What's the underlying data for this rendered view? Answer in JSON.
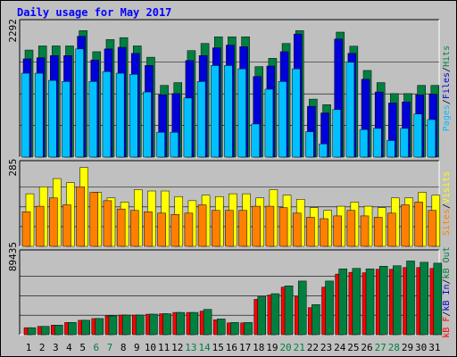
{
  "chart_data": {
    "title": "Daily usage for May 2017",
    "type": "bar",
    "categories": [
      "1",
      "2",
      "3",
      "4",
      "5",
      "6",
      "7",
      "8",
      "9",
      "10",
      "11",
      "12",
      "13",
      "14",
      "15",
      "16",
      "17",
      "18",
      "19",
      "20",
      "21",
      "22",
      "23",
      "24",
      "25",
      "26",
      "27",
      "28",
      "29",
      "30",
      "31"
    ],
    "weekend_days": [
      "6",
      "7",
      "13",
      "14",
      "20",
      "21",
      "27",
      "28"
    ],
    "colors": {
      "hits": "#008040",
      "files": "#0000d8",
      "pages": "#00c0ff",
      "visits": "#ffff00",
      "sites": "#ff8000",
      "kb_in": "#ff0000",
      "kb_out": "#008040",
      "weekday_label": "#000000",
      "weekend_label": "#008040",
      "title": "#0000ff",
      "grid": "#000000",
      "panel_bg": "#c0c0c0"
    },
    "panels": [
      {
        "key": "requests",
        "ymax_label": "2292",
        "ylim": [
          0,
          2292
        ],
        "legend": [
          {
            "text": "Pages",
            "color": "#00c0ff"
          },
          {
            "text": "Files",
            "color": "#0000d8"
          },
          {
            "text": "Hits",
            "color": "#008040"
          }
        ],
        "series": [
          {
            "name": "Hits",
            "values": [
              1940,
              2015,
              2015,
              2015,
              2292,
              1910,
              2130,
              2165,
              2015,
              1810,
              1300,
              1350,
              1930,
              2060,
              2180,
              2180,
              2180,
              1640,
              1790,
              2060,
              2292,
              1050,
              950,
              2265,
              2010,
              1570,
              1350,
              1150,
              1150,
              1300,
              1300
            ]
          },
          {
            "name": "Files",
            "values": [
              1780,
              1800,
              1840,
              1840,
              2190,
              1760,
              1960,
              1990,
              1880,
              1660,
              1130,
              1150,
              1750,
              1840,
              1980,
              2030,
              2000,
              1460,
              1650,
              1910,
              2230,
              920,
              800,
              2140,
              1880,
              1410,
              1180,
              980,
              1000,
              1130,
              1140
            ]
          },
          {
            "name": "Pages",
            "values": [
              1520,
              1520,
              1390,
              1370,
              1960,
              1370,
              1550,
              1520,
              1500,
              1180,
              450,
              450,
              1070,
              1370,
              1660,
              1660,
              1600,
              600,
              1230,
              1370,
              1600,
              460,
              240,
              860,
              1720,
              500,
              520,
              300,
              520,
              780,
              680
            ]
          }
        ]
      },
      {
        "key": "visits",
        "ymax_label": "285",
        "ylim": [
          0,
          285
        ],
        "legend": [
          {
            "text": "Sites",
            "color": "#ff8000"
          },
          {
            "text": "Visits",
            "color": "#ffff00"
          }
        ],
        "series": [
          {
            "name": "Visits",
            "values": [
              190,
              215,
              245,
              230,
              285,
              195,
              175,
              160,
              205,
              200,
              200,
              180,
              165,
              185,
              180,
              190,
              190,
              175,
              205,
              185,
              170,
              140,
              130,
              145,
              160,
              145,
              140,
              175,
              175,
              195,
              185
            ]
          },
          {
            "name": "Sites",
            "values": [
              125,
              145,
              175,
              150,
              215,
              195,
              165,
              135,
              130,
              125,
              120,
              115,
              120,
              150,
              130,
              130,
              130,
              145,
              145,
              140,
              120,
              105,
              100,
              110,
              130,
              110,
              105,
              120,
              150,
              160,
              130
            ]
          }
        ]
      },
      {
        "key": "kbytes",
        "ymax_label": "89435",
        "ylim": [
          0,
          89435
        ],
        "legend": [
          {
            "text": "kB F",
            "color": "#ff0000"
          },
          {
            "text": "kB In",
            "color": "#0000d8"
          },
          {
            "text": "kB Out",
            "color": "#008040"
          }
        ],
        "series": [
          {
            "name": "kB F",
            "values": [
              8000,
              9500,
              11000,
              14000,
              16500,
              18500,
              21500,
              22500,
              22500,
              23500,
              24000,
              25500,
              25500,
              27000,
              17000,
              13500,
              13500,
              40500,
              45500,
              54500,
              43500,
              31000,
              54500,
              69500,
              71500,
              71000,
              75000,
              75000,
              77000,
              77000,
              76000
            ]
          },
          {
            "name": "kB Out",
            "values": [
              8000,
              9500,
              11000,
              14000,
              16500,
              18500,
              21500,
              22500,
              22500,
              23500,
              24000,
              25500,
              25500,
              29000,
              18000,
              14000,
              14000,
              43500,
              47000,
              56000,
              61500,
              34500,
              61500,
              75500,
              76000,
              75500,
              78500,
              79000,
              84500,
              83000,
              82000
            ]
          }
        ]
      }
    ]
  }
}
